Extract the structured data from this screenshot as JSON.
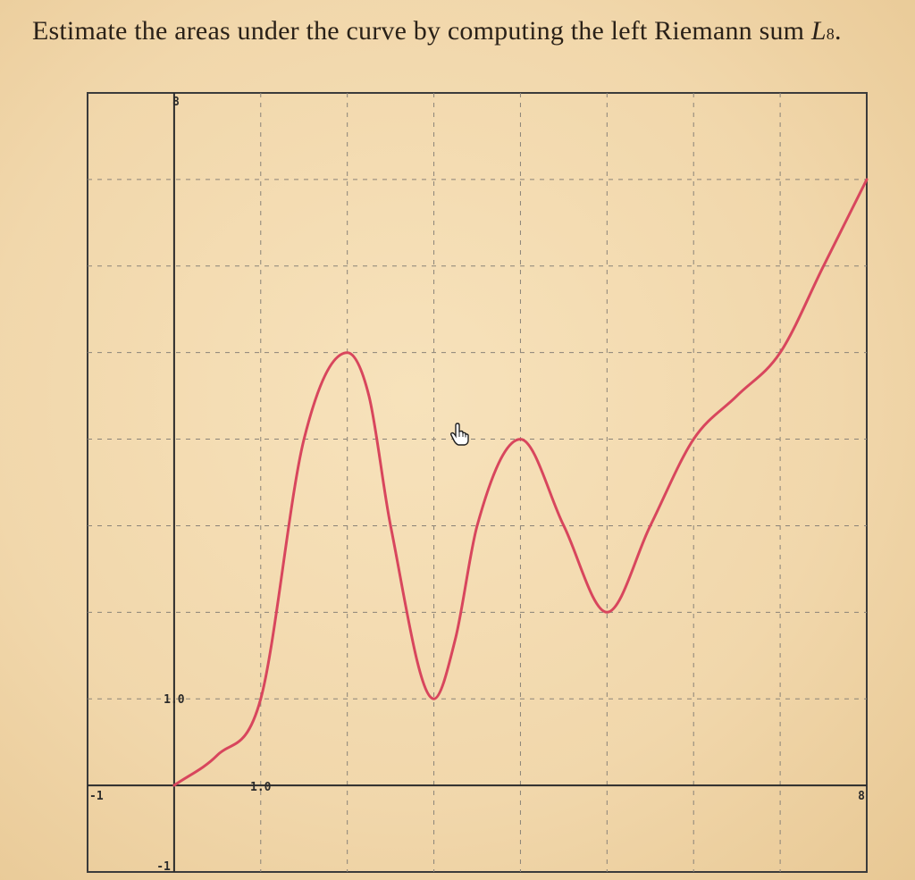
{
  "question": {
    "prefix": "Estimate the areas under the curve by computing the left Riemann sum ",
    "symbol": "L",
    "subscript": "8",
    "suffix": "."
  },
  "chart_data": {
    "type": "line",
    "title": "",
    "xlabel": "",
    "ylabel": "",
    "xlim": [
      -1,
      8
    ],
    "ylim": [
      -1,
      8
    ],
    "grid": true,
    "tick_labels": {
      "x_min": "-1",
      "x_max": "8",
      "x_unit": "1.0",
      "y_min": "-1",
      "y_max": "8",
      "y_unit": "1.0"
    },
    "series": [
      {
        "color": "#d8465d",
        "x": [
          0,
          0.5,
          1,
          1.5,
          2,
          2.25,
          2.5,
          3,
          3.25,
          3.5,
          4,
          4.5,
          5,
          5.5,
          6,
          6.5,
          7,
          7.5,
          8
        ],
        "y": [
          0,
          0.35,
          1,
          4,
          5,
          4.5,
          3,
          1,
          1.7,
          3,
          4,
          3,
          2,
          3,
          4,
          4.5,
          5,
          6,
          7
        ]
      }
    ]
  }
}
